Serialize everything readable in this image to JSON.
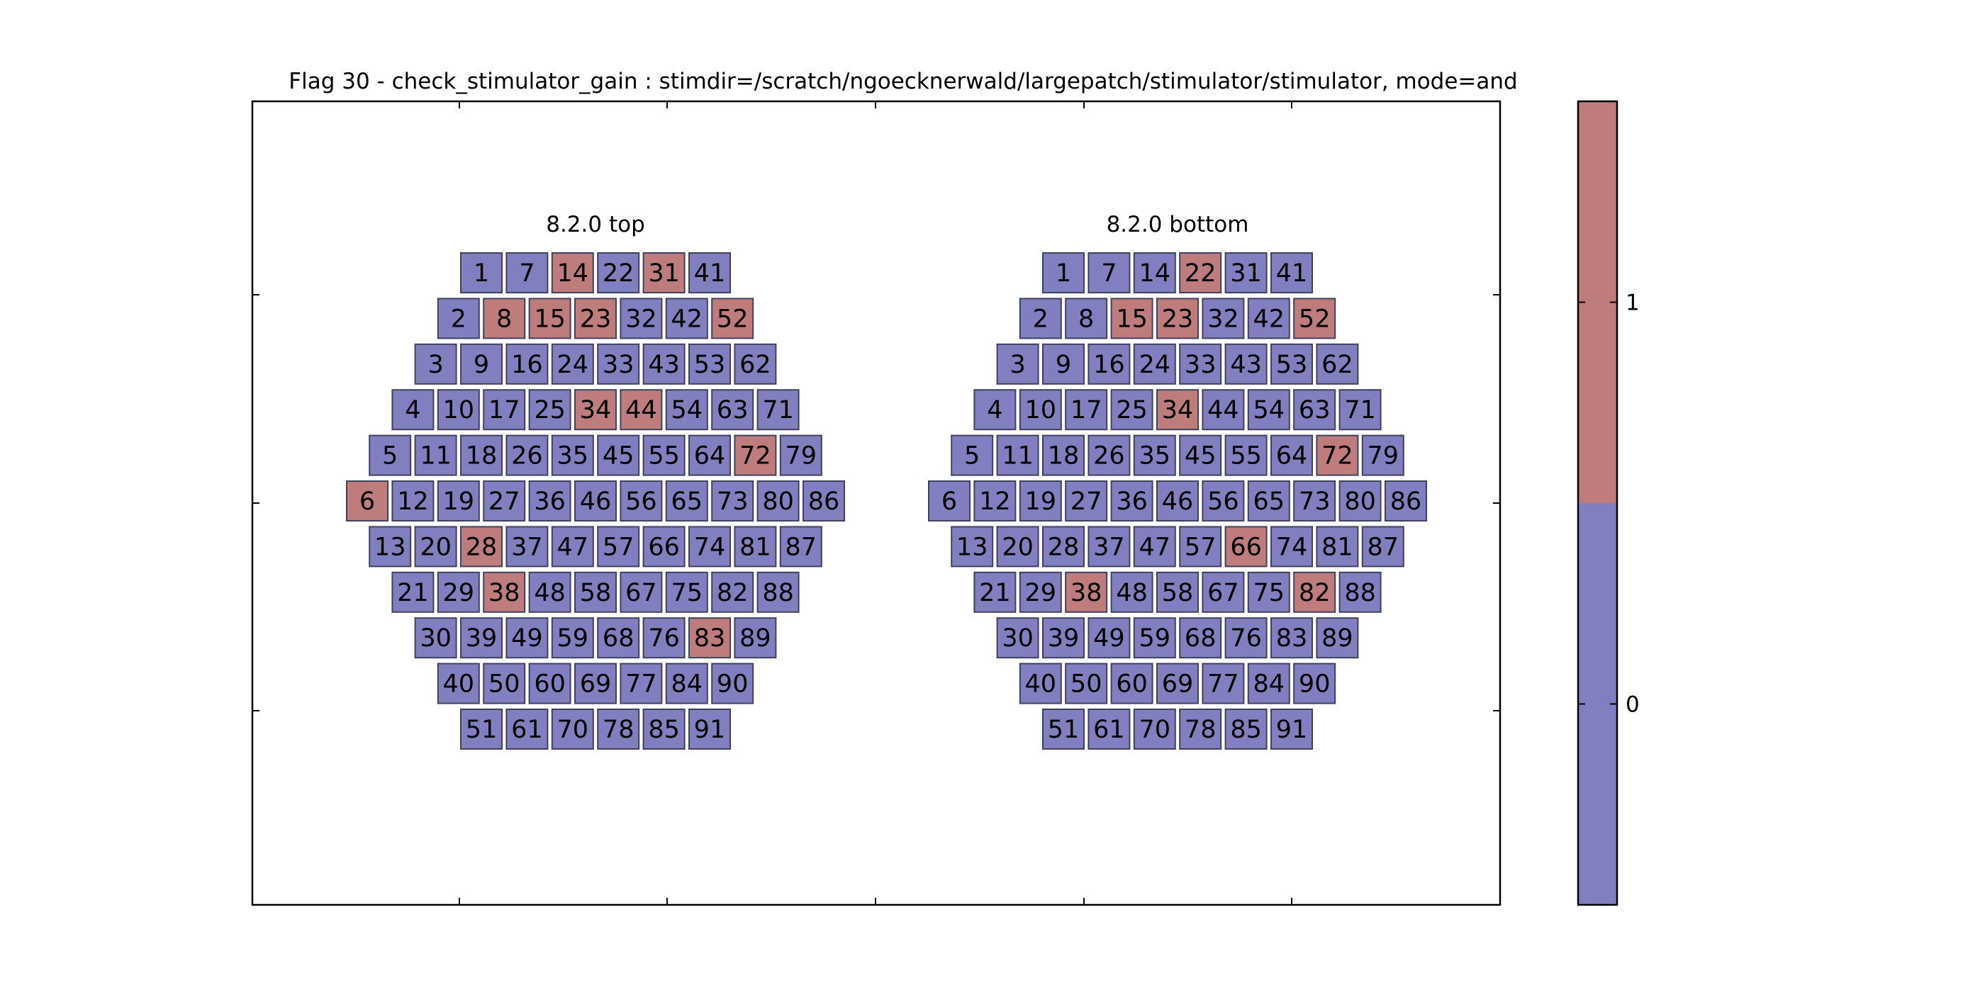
{
  "chart_data": {
    "type": "heatmap",
    "title": "Flag 30 - check_stimulator_gain : stimdir=/scratch/ngoecknerwald/largepatch/stimulator/stimulator, mode=and",
    "panels": [
      {
        "title": "8.2.0 top",
        "rows": [
          [
            1,
            7,
            14,
            22,
            31,
            41
          ],
          [
            2,
            8,
            15,
            23,
            32,
            42,
            52
          ],
          [
            3,
            9,
            16,
            24,
            33,
            43,
            53,
            62
          ],
          [
            4,
            10,
            17,
            25,
            34,
            44,
            54,
            63,
            71
          ],
          [
            5,
            11,
            18,
            26,
            35,
            45,
            55,
            64,
            72,
            79
          ],
          [
            6,
            12,
            19,
            27,
            36,
            46,
            56,
            65,
            73,
            80,
            86
          ],
          [
            13,
            20,
            28,
            37,
            47,
            57,
            66,
            74,
            81,
            87
          ],
          [
            21,
            29,
            38,
            48,
            58,
            67,
            75,
            82,
            88
          ],
          [
            30,
            39,
            49,
            59,
            68,
            76,
            83,
            89
          ],
          [
            40,
            50,
            60,
            69,
            77,
            84,
            90
          ],
          [
            51,
            61,
            70,
            78,
            85,
            91
          ]
        ],
        "flagged": [
          14,
          31,
          8,
          15,
          23,
          52,
          34,
          44,
          72,
          6,
          28,
          38,
          83
        ]
      },
      {
        "title": "8.2.0 bottom",
        "rows": [
          [
            1,
            7,
            14,
            22,
            31,
            41
          ],
          [
            2,
            8,
            15,
            23,
            32,
            42,
            52
          ],
          [
            3,
            9,
            16,
            24,
            33,
            43,
            53,
            62
          ],
          [
            4,
            10,
            17,
            25,
            34,
            44,
            54,
            63,
            71
          ],
          [
            5,
            11,
            18,
            26,
            35,
            45,
            55,
            64,
            72,
            79
          ],
          [
            6,
            12,
            19,
            27,
            36,
            46,
            56,
            65,
            73,
            80,
            86
          ],
          [
            13,
            20,
            28,
            37,
            47,
            57,
            66,
            74,
            81,
            87
          ],
          [
            21,
            29,
            38,
            48,
            58,
            67,
            75,
            82,
            88
          ],
          [
            30,
            39,
            49,
            59,
            68,
            76,
            83,
            89
          ],
          [
            40,
            50,
            60,
            69,
            77,
            84,
            90
          ],
          [
            51,
            61,
            70,
            78,
            85,
            91
          ]
        ],
        "flagged": [
          22,
          15,
          23,
          52,
          34,
          72,
          66,
          38,
          82
        ]
      }
    ],
    "colorbar": {
      "ticks": [
        "0",
        "1"
      ],
      "colors": {
        "0": "#8080c0",
        "1": "#bf7c7c"
      }
    },
    "grid": false
  }
}
